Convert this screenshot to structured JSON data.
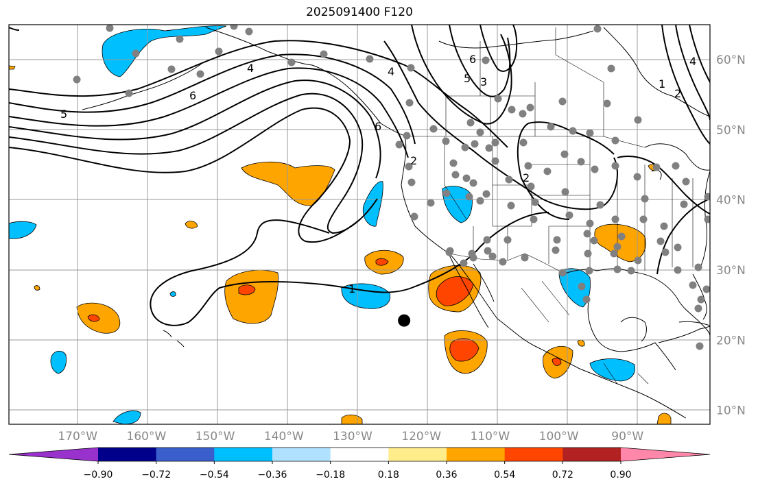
{
  "title": "2025091400 F120",
  "map": {
    "projection": "plate-carree",
    "lon_range": [
      -180,
      -78
    ],
    "lat_range": [
      8,
      65
    ],
    "grid": true,
    "lat_labels": [
      "10°N",
      "20°N",
      "30°N",
      "40°N",
      "50°N",
      "60°N"
    ],
    "lon_labels": [
      "170°W",
      "160°W",
      "150°W",
      "140°W",
      "130°W",
      "120°W",
      "110°W",
      "100°W",
      "90°W"
    ],
    "lat_values": [
      10,
      20,
      30,
      40,
      50,
      60
    ],
    "lon_values": [
      -170,
      -160,
      -150,
      -140,
      -130,
      -120,
      -110,
      -100,
      -90
    ],
    "marker": {
      "lon": -122.5,
      "lat": 22.8,
      "color": "#000000"
    },
    "contour_labels": [
      "1",
      "2",
      "3",
      "4",
      "5",
      "6"
    ]
  },
  "colorbar": {
    "labels": [
      "−0.90",
      "−0.72",
      "−0.54",
      "−0.36",
      "−0.18",
      "0.18",
      "0.36",
      "0.54",
      "0.72",
      "0.90"
    ],
    "colors": [
      "#9932cc",
      "#00008b",
      "#3a5fcd",
      "#00bfff",
      "#b0e2ff",
      "#ffffff",
      "#ffec8b",
      "#ffa500",
      "#ff4500",
      "#b22222",
      "#ff88aa"
    ]
  }
}
